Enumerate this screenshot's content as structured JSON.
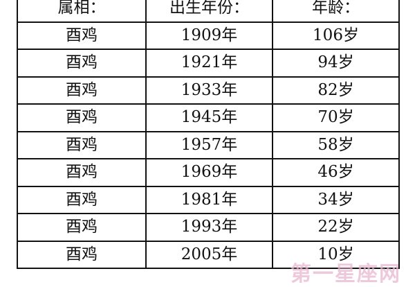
{
  "table": {
    "headers": [
      "属相：",
      "出生年份：",
      "年龄："
    ],
    "rows": [
      [
        "酉鸡",
        "1909年",
        "106岁"
      ],
      [
        "酉鸡",
        "1921年",
        "94岁"
      ],
      [
        "酉鸡",
        "1933年",
        "82岁"
      ],
      [
        "酉鸡",
        "1945年",
        "70岁"
      ],
      [
        "酉鸡",
        "1957年",
        "58岁"
      ],
      [
        "酉鸡",
        "1969年",
        "46岁"
      ],
      [
        "酉鸡",
        "1981年",
        "34岁"
      ],
      [
        "酉鸡",
        "1993年",
        "22岁"
      ],
      [
        "酉鸡",
        "2005年",
        "10岁"
      ]
    ]
  },
  "watermark": "第一星座网"
}
